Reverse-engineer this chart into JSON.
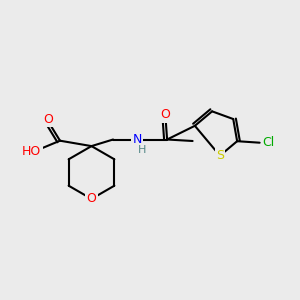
{
  "bg_color": "#ebebeb",
  "bond_color": "#000000",
  "bond_lw": 1.5,
  "atom_colors": {
    "O": "#ff0000",
    "N": "#0000ff",
    "S": "#cccc00",
    "Cl": "#00aa00",
    "H": "#558888",
    "C": "#000000"
  },
  "font_size": 9,
  "font_size_small": 8
}
